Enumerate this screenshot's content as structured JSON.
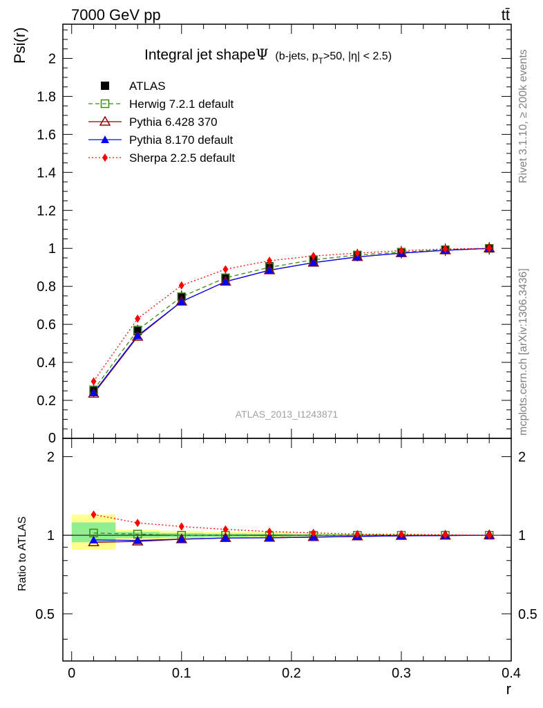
{
  "header": {
    "left_label": "7000 GeV pp",
    "right_label": "tt̄",
    "side_label_top": "Rivet 3.1.10, ≥ 200k events",
    "side_label_bottom": "mcplots.cern.ch [arXiv:1306.3436]",
    "watermark": "ATLAS_2013_I1243871"
  },
  "colors": {
    "atlas": "#000000",
    "herwig": "#3a8a10",
    "pythia6": "#8b0000",
    "pythia8": "#0000ff",
    "sherpa": "#ff0000",
    "band_inner": "#90ee90",
    "band_outer": "#ffff90"
  },
  "chart_data": [
    {
      "type": "line",
      "panel": "main",
      "title": "Integral jet shape",
      "title_symbol": "Ψ",
      "subtitle": "(b-jets, p",
      "subtitle_sub": "T",
      "subtitle_rest": ">50, |η| < 2.5)",
      "xlabel": "r",
      "ylabel": "Psi(r)",
      "xlim": [
        -0.008,
        0.4
      ],
      "ylim": [
        0,
        2.18
      ],
      "yticks": [
        "0.2",
        "0.4",
        "0.6",
        "0.8",
        "1",
        "1.2",
        "1.4",
        "1.6",
        "1.8",
        "2"
      ],
      "ytick_values": [
        0.2,
        0.4,
        0.6,
        0.8,
        1,
        1.2,
        1.4,
        1.6,
        1.8,
        2
      ],
      "ytick_zero_label": "0",
      "legend_position": "top-left",
      "x": [
        0.02,
        0.06,
        0.1,
        0.14,
        0.18,
        0.22,
        0.26,
        0.3,
        0.34,
        0.38
      ],
      "series": [
        {
          "name": "ATLAS",
          "key": "atlas",
          "marker": "filled-square",
          "line": "none",
          "values": [
            0.25,
            0.565,
            0.745,
            0.845,
            0.905,
            0.94,
            0.965,
            0.98,
            0.993,
            1.0
          ]
        },
        {
          "name": "Herwig 7.2.1 default",
          "key": "herwig",
          "marker": "open-square",
          "line": "dashed",
          "values": [
            0.255,
            0.57,
            0.745,
            0.845,
            0.9,
            0.94,
            0.965,
            0.98,
            0.993,
            1.0
          ]
        },
        {
          "name": "Pythia 6.428 370",
          "key": "pythia6",
          "marker": "open-triangle",
          "line": "solid",
          "values": [
            0.235,
            0.535,
            0.72,
            0.825,
            0.885,
            0.925,
            0.955,
            0.975,
            0.99,
            1.0
          ]
        },
        {
          "name": "Pythia 8.170 default",
          "key": "pythia8",
          "marker": "filled-triangle",
          "line": "solid",
          "values": [
            0.24,
            0.54,
            0.72,
            0.825,
            0.885,
            0.925,
            0.955,
            0.975,
            0.99,
            1.0
          ]
        },
        {
          "name": "Sherpa 2.2.5 default",
          "key": "sherpa",
          "marker": "filled-diamond",
          "line": "dotted",
          "values": [
            0.3,
            0.63,
            0.805,
            0.89,
            0.935,
            0.96,
            0.975,
            0.988,
            0.997,
            1.0
          ]
        }
      ]
    },
    {
      "type": "line",
      "panel": "ratio",
      "ylabel": "Ratio to ATLAS",
      "xlabel": "r",
      "xlim": [
        -0.008,
        0.4
      ],
      "ylim": [
        0.33,
        2.35
      ],
      "log_y": true,
      "yticks": [
        "0.5",
        "1",
        "2"
      ],
      "ytick_values": [
        0.5,
        1,
        2
      ],
      "xticks": [
        "0",
        "0.1",
        "0.2",
        "0.3",
        "0.4"
      ],
      "xtick_values": [
        0,
        0.1,
        0.2,
        0.3,
        0.4
      ],
      "x": [
        0.02,
        0.06,
        0.1,
        0.14,
        0.18,
        0.22,
        0.26,
        0.3,
        0.34,
        0.38
      ],
      "bands": [
        {
          "x0": 0.0,
          "x1": 0.04,
          "inner": [
            0.94,
            1.12
          ],
          "outer": [
            0.88,
            1.2
          ]
        },
        {
          "x0": 0.04,
          "x1": 0.08,
          "inner": [
            0.975,
            1.03
          ],
          "outer": [
            0.955,
            1.05
          ]
        },
        {
          "x0": 0.08,
          "x1": 0.12,
          "inner": [
            0.98,
            1.02
          ],
          "outer": [
            0.965,
            1.04
          ]
        },
        {
          "x0": 0.12,
          "x1": 0.16,
          "inner": [
            0.985,
            1.015
          ],
          "outer": [
            0.975,
            1.03
          ]
        },
        {
          "x0": 0.16,
          "x1": 0.2,
          "inner": [
            0.99,
            1.012
          ],
          "outer": [
            0.98,
            1.03
          ]
        },
        {
          "x0": 0.2,
          "x1": 0.24,
          "inner": [
            0.993,
            1.008
          ],
          "outer": [
            0.985,
            1.02
          ]
        },
        {
          "x0": 0.24,
          "x1": 0.28,
          "inner": [
            0.995,
            1.006
          ],
          "outer": [
            0.99,
            1.012
          ]
        },
        {
          "x0": 0.28,
          "x1": 0.32,
          "inner": [
            0.996,
            1.004
          ],
          "outer": [
            0.993,
            1.008
          ]
        },
        {
          "x0": 0.32,
          "x1": 0.36,
          "inner": [
            0.998,
            1.002
          ],
          "outer": [
            0.996,
            1.004
          ]
        },
        {
          "x0": 0.36,
          "x1": 0.4,
          "inner": [
            0.999,
            1.001
          ],
          "outer": [
            0.998,
            1.002
          ]
        }
      ],
      "series": [
        {
          "name": "Herwig 7.2.1 default",
          "key": "herwig",
          "marker": "open-square",
          "line": "dashed",
          "values": [
            1.02,
            1.01,
            1.0,
            1.0,
            0.995,
            1.0,
            1.0,
            1.0,
            1.0,
            1.0
          ]
        },
        {
          "name": "Pythia 6.428 370",
          "key": "pythia6",
          "marker": "open-triangle",
          "line": "solid",
          "values": [
            0.94,
            0.947,
            0.966,
            0.976,
            0.978,
            0.984,
            0.99,
            0.995,
            0.997,
            1.0
          ]
        },
        {
          "name": "Pythia 8.170 default",
          "key": "pythia8",
          "marker": "filled-triangle",
          "line": "solid",
          "values": [
            0.96,
            0.955,
            0.966,
            0.976,
            0.978,
            0.984,
            0.99,
            0.995,
            0.997,
            1.0
          ]
        },
        {
          "name": "Sherpa 2.2.5 default",
          "key": "sherpa",
          "marker": "filled-diamond",
          "line": "dotted",
          "values": [
            1.2,
            1.115,
            1.08,
            1.053,
            1.033,
            1.021,
            1.01,
            1.008,
            1.004,
            1.0
          ]
        }
      ]
    }
  ]
}
